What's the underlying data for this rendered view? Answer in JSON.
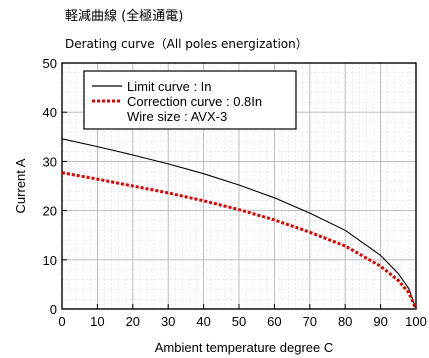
{
  "header": {
    "title_jp": "軽減曲線 (全極通電)",
    "title_en": "Derating curve（All poles energization）"
  },
  "chart_data": {
    "type": "line",
    "title": "軽減曲線 (全極通電)",
    "subtitle": "Derating curve（All poles energization）",
    "xlabel": "Ambient temperature  degree C",
    "ylabel": "Current  A",
    "xlim": [
      0,
      100
    ],
    "ylim": [
      0,
      50
    ],
    "xticks": [
      0,
      10,
      20,
      30,
      40,
      50,
      60,
      70,
      80,
      90,
      100
    ],
    "yticks": [
      0,
      10,
      20,
      30,
      40,
      50
    ],
    "grid": true,
    "legend_position": "top-left",
    "legend_note": "Wire size : AVX-3",
    "series": [
      {
        "name": "Limit curve : In",
        "style": "solid",
        "color": "#000000",
        "x": [
          0,
          10,
          20,
          30,
          40,
          50,
          60,
          70,
          80,
          90,
          95,
          98,
          100
        ],
        "y": [
          34.6,
          33.0,
          31.3,
          29.5,
          27.5,
          25.2,
          22.6,
          19.5,
          16.0,
          10.9,
          7.2,
          4.1,
          0
        ]
      },
      {
        "name": "Correction curve : 0.8In",
        "style": "dotted",
        "color": "#e00000",
        "x": [
          0,
          10,
          20,
          30,
          40,
          50,
          60,
          70,
          80,
          90,
          95,
          98,
          100
        ],
        "y": [
          27.7,
          26.4,
          25.0,
          23.6,
          22.0,
          20.2,
          18.1,
          15.6,
          12.8,
          8.7,
          5.8,
          3.3,
          0
        ]
      }
    ]
  }
}
